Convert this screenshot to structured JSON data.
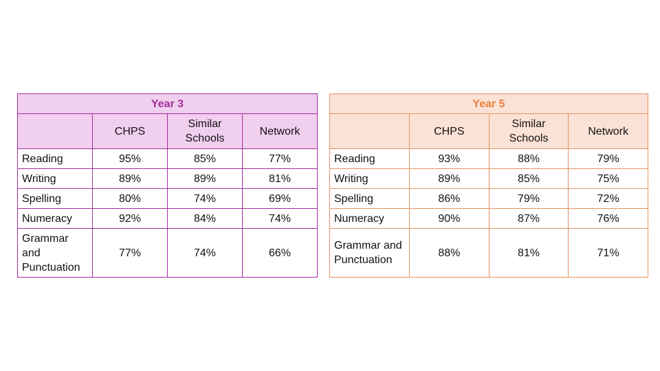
{
  "tables": [
    {
      "title": "Year 3",
      "columns": [
        "CHPS",
        "Similar Schools",
        "Network"
      ],
      "rows": [
        [
          "Reading",
          "95%",
          "85%",
          "77%"
        ],
        [
          "Writing",
          "89%",
          "89%",
          "81%"
        ],
        [
          "Spelling",
          "80%",
          "74%",
          "69%"
        ],
        [
          "Numeracy",
          "92%",
          "84%",
          "74%"
        ],
        [
          "Grammar and Punctuation",
          "77%",
          "74%",
          "66%"
        ]
      ]
    },
    {
      "title": "Year 5",
      "columns": [
        "CHPS",
        "Similar Schools",
        "Network"
      ],
      "rows": [
        [
          "Reading",
          "93%",
          "88%",
          "79%"
        ],
        [
          "Writing",
          "89%",
          "85%",
          "75%"
        ],
        [
          "Spelling",
          "86%",
          "79%",
          "72%"
        ],
        [
          "Numeracy",
          "90%",
          "87%",
          "76%"
        ],
        [
          "Grammar and Punctuation",
          "88%",
          "81%",
          "71%"
        ]
      ]
    }
  ]
}
